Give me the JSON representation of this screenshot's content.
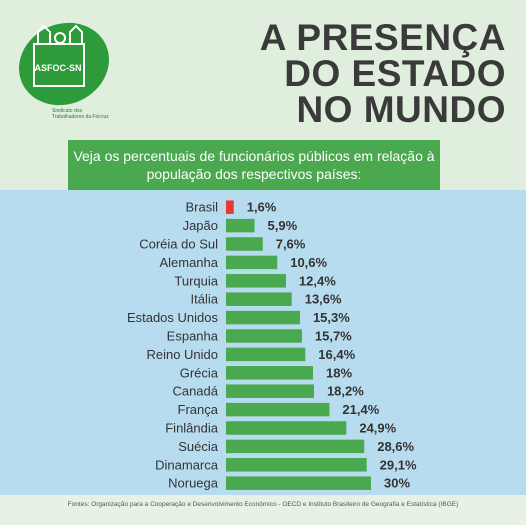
{
  "logo": {
    "acronym": "ASFOC-SN",
    "org_name": "Sindicato dos Trabalhadores da Fiocruz"
  },
  "headline": {
    "line1": "A PRESENÇA",
    "line2": "DO ESTADO",
    "line3": "NO MUNDO"
  },
  "subtitle": "Veja os percentuais de funcionários públicos em relação à população dos respectivos países:",
  "footer": {
    "source": "Fontes: Organização para a Cooperação e Desenvolvimento Econômico - OECD e Instituto Brasileiro de Geografia e Estatística (IBGE)"
  },
  "colors": {
    "green": "#4aa84e",
    "red": "#e53935",
    "blue_bg": "#b8dcef"
  },
  "chart_data": {
    "type": "bar",
    "orientation": "horizontal",
    "categories": [
      "Brasil",
      "Japão",
      "Coréia do Sul",
      "Alemanha",
      "Turquia",
      "Itália",
      "Estados Unidos",
      "Espanha",
      "Reino Unido",
      "Grécia",
      "Canadá",
      "França",
      "Finlândia",
      "Suécia",
      "Dinamarca",
      "Noruega"
    ],
    "values": [
      1.6,
      5.9,
      7.6,
      10.6,
      12.4,
      13.6,
      15.3,
      15.7,
      16.4,
      18,
      18.2,
      21.4,
      24.9,
      28.6,
      29.1,
      30
    ],
    "value_labels": [
      "1,6%",
      "5,9%",
      "7,6%",
      "10,6%",
      "12,4%",
      "13,6%",
      "15,3%",
      "15,7%",
      "16,4%",
      "18%",
      "18,2%",
      "21,4%",
      "24,9%",
      "28,6%",
      "29,1%",
      "30%"
    ],
    "highlight": "Brasil",
    "xlim": [
      0,
      30
    ]
  }
}
